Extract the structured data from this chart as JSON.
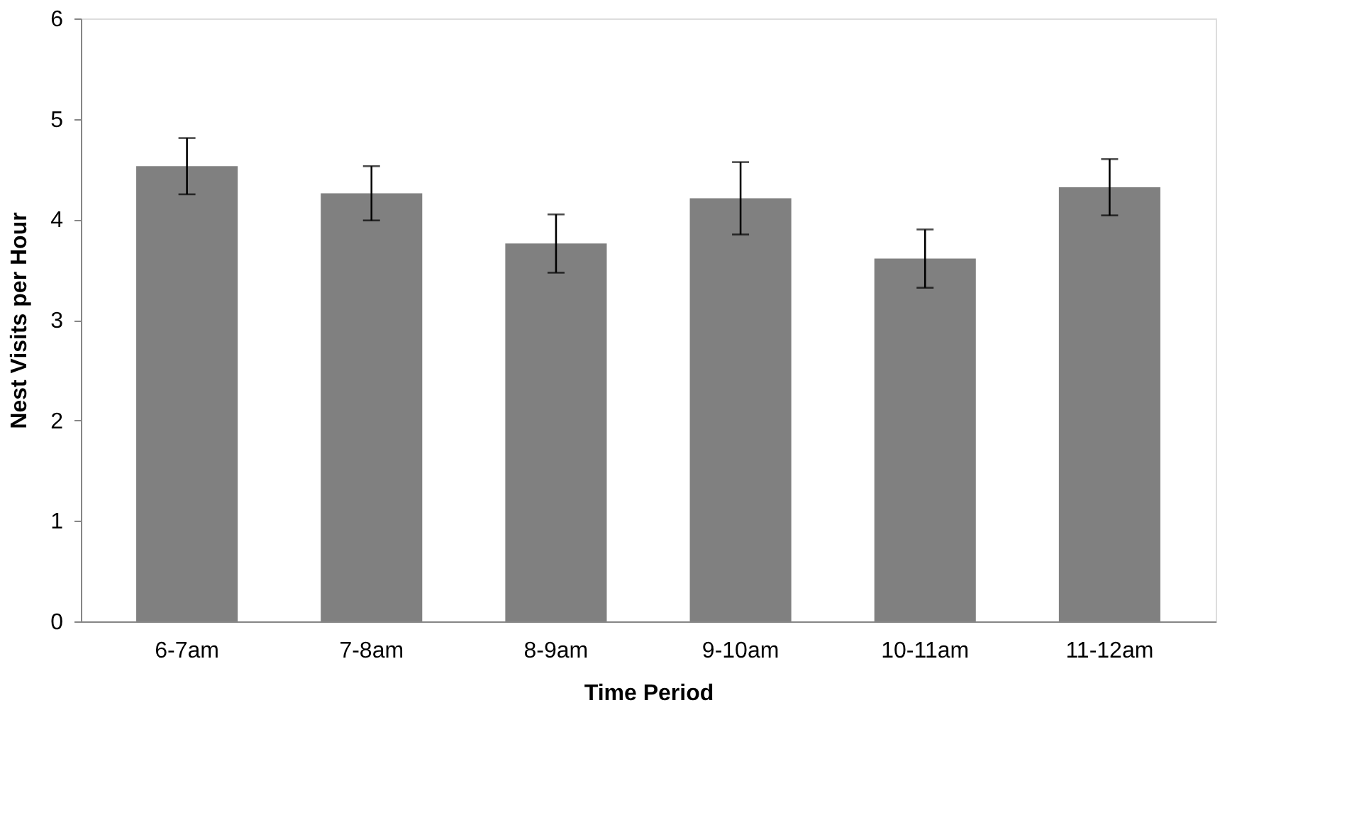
{
  "chart_data": {
    "type": "bar",
    "xlabel": "Time Period",
    "ylabel": "Nest Visits per Hour",
    "categories": [
      "6-7am",
      "7-8am",
      "8-9am",
      "9-10am",
      "10-11am",
      "11-12am"
    ],
    "values": [
      4.53,
      4.26,
      3.76,
      4.21,
      3.61,
      4.32
    ],
    "errors": [
      0.28,
      0.27,
      0.29,
      0.36,
      0.29,
      0.28
    ],
    "color": "#808080",
    "ylim": [
      0,
      6
    ],
    "yticks": [
      0,
      1,
      2,
      3,
      4,
      5,
      6
    ],
    "grid": false
  }
}
